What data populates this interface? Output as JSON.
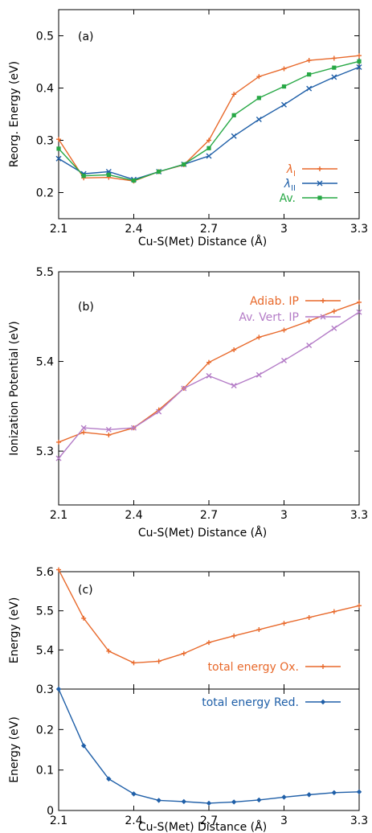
{
  "chart_data": [
    {
      "id": "a",
      "type": "line",
      "panel_label": "(a)",
      "xlabel": "Cu-S(Met) Distance (Å)",
      "ylabel": "Reorg. Energy (eV)",
      "xlim": [
        2.1,
        3.3
      ],
      "ylim": [
        0.15,
        0.55
      ],
      "xticks": [
        2.1,
        2.4,
        2.7,
        3.0,
        3.3
      ],
      "xtick_labels": [
        "2.1",
        "2.4",
        "2.7",
        "3",
        "3.3"
      ],
      "yticks": [
        0.2,
        0.3,
        0.4,
        0.5
      ],
      "ytick_labels": [
        "0.2",
        "0.3",
        "0.4",
        "0.5"
      ],
      "legend_position": "bottom-right",
      "x": [
        2.1,
        2.2,
        2.3,
        2.4,
        2.5,
        2.6,
        2.7,
        2.8,
        2.9,
        3.0,
        3.1,
        3.2,
        3.3
      ],
      "series": [
        {
          "name": "λ",
          "subscript": "I",
          "color": "#e8692b",
          "marker": "plus",
          "values": [
            0.302,
            0.228,
            0.229,
            0.222,
            0.24,
            0.253,
            0.3,
            0.388,
            0.422,
            0.437,
            0.453,
            0.457,
            0.462
          ]
        },
        {
          "name": "λ",
          "subscript": "II",
          "color": "#1f5fa8",
          "marker": "x",
          "values": [
            0.265,
            0.236,
            0.24,
            0.225,
            0.24,
            0.254,
            0.27,
            0.308,
            0.34,
            0.368,
            0.399,
            0.421,
            0.44
          ]
        },
        {
          "name": "Av.",
          "subscript": "",
          "color": "#27a845",
          "marker": "square",
          "values": [
            0.284,
            0.232,
            0.234,
            0.223,
            0.24,
            0.254,
            0.285,
            0.348,
            0.381,
            0.403,
            0.426,
            0.439,
            0.451
          ]
        }
      ]
    },
    {
      "id": "b",
      "type": "line",
      "panel_label": "(b)",
      "xlabel": "Cu-S(Met) Distance (Å)",
      "ylabel": "Ionization Potential (eV)",
      "xlim": [
        2.1,
        3.3
      ],
      "ylim": [
        5.24,
        5.5
      ],
      "xticks": [
        2.1,
        2.4,
        2.7,
        3.0,
        3.3
      ],
      "xtick_labels": [
        "2.1",
        "2.4",
        "2.7",
        "3",
        "3.3"
      ],
      "yticks": [
        5.3,
        5.4,
        5.5
      ],
      "ytick_labels": [
        "5.3",
        "5.4",
        "5.5"
      ],
      "legend_position": "top-right",
      "x": [
        2.1,
        2.2,
        2.3,
        2.4,
        2.5,
        2.6,
        2.7,
        2.8,
        2.9,
        3.0,
        3.1,
        3.2,
        3.3
      ],
      "series": [
        {
          "name": "Adiab. IP",
          "subscript": "",
          "color": "#e8692b",
          "marker": "plus",
          "values": [
            5.31,
            5.321,
            5.318,
            5.326,
            5.346,
            5.37,
            5.399,
            5.413,
            5.427,
            5.435,
            5.445,
            5.456,
            5.466
          ]
        },
        {
          "name": "Av. Vert. IP",
          "subscript": "",
          "color": "#b47cc7",
          "marker": "x",
          "values": [
            5.292,
            5.326,
            5.324,
            5.326,
            5.344,
            5.37,
            5.384,
            5.373,
            5.385,
            5.401,
            5.418,
            5.437,
            5.455
          ]
        }
      ]
    },
    {
      "id": "c-ox",
      "type": "line",
      "panel_label": "(c)",
      "xlabel": "",
      "ylabel": "Energy (eV)",
      "xlim": [
        2.1,
        3.3
      ],
      "ylim": [
        5.3,
        5.6
      ],
      "xticks": [
        2.1,
        2.4,
        2.7,
        3.0,
        3.3
      ],
      "xtick_labels": [],
      "yticks": [
        5.4,
        5.5,
        5.6
      ],
      "ytick_labels": [
        "5.4",
        "5.5",
        "5.6"
      ],
      "legend_position": "bottom-right",
      "x": [
        2.1,
        2.2,
        2.3,
        2.4,
        2.5,
        2.6,
        2.7,
        2.8,
        2.9,
        3.0,
        3.1,
        3.2,
        3.3
      ],
      "series": [
        {
          "name": "total energy Ox.",
          "subscript": "",
          "color": "#e8692b",
          "marker": "plus",
          "values": [
            5.605,
            5.481,
            5.397,
            5.367,
            5.371,
            5.391,
            5.419,
            5.436,
            5.452,
            5.468,
            5.483,
            5.498,
            5.513
          ]
        }
      ]
    },
    {
      "id": "c-red",
      "type": "line",
      "panel_label": "",
      "xlabel": "Cu-S(Met) Distance (Å)",
      "ylabel": "Energy (eV)",
      "xlim": [
        2.1,
        3.3
      ],
      "ylim": [
        0,
        0.3
      ],
      "xticks": [
        2.1,
        2.4,
        2.7,
        3.0,
        3.3
      ],
      "xtick_labels": [
        "2.1",
        "2.4",
        "2.7",
        "3",
        "3.3"
      ],
      "yticks": [
        0,
        0.1,
        0.2,
        0.3
      ],
      "ytick_labels": [
        "0",
        "0.1",
        "0.2",
        "0.3"
      ],
      "legend_position": "top-right",
      "x": [
        2.1,
        2.2,
        2.3,
        2.4,
        2.5,
        2.6,
        2.7,
        2.8,
        2.9,
        3.0,
        3.1,
        3.2,
        3.3
      ],
      "series": [
        {
          "name": "total energy Red.",
          "subscript": "",
          "color": "#1f5fa8",
          "marker": "diamond",
          "values": [
            0.3,
            0.16,
            0.078,
            0.041,
            0.025,
            0.022,
            0.018,
            0.021,
            0.026,
            0.033,
            0.039,
            0.044,
            0.046
          ]
        }
      ]
    }
  ]
}
